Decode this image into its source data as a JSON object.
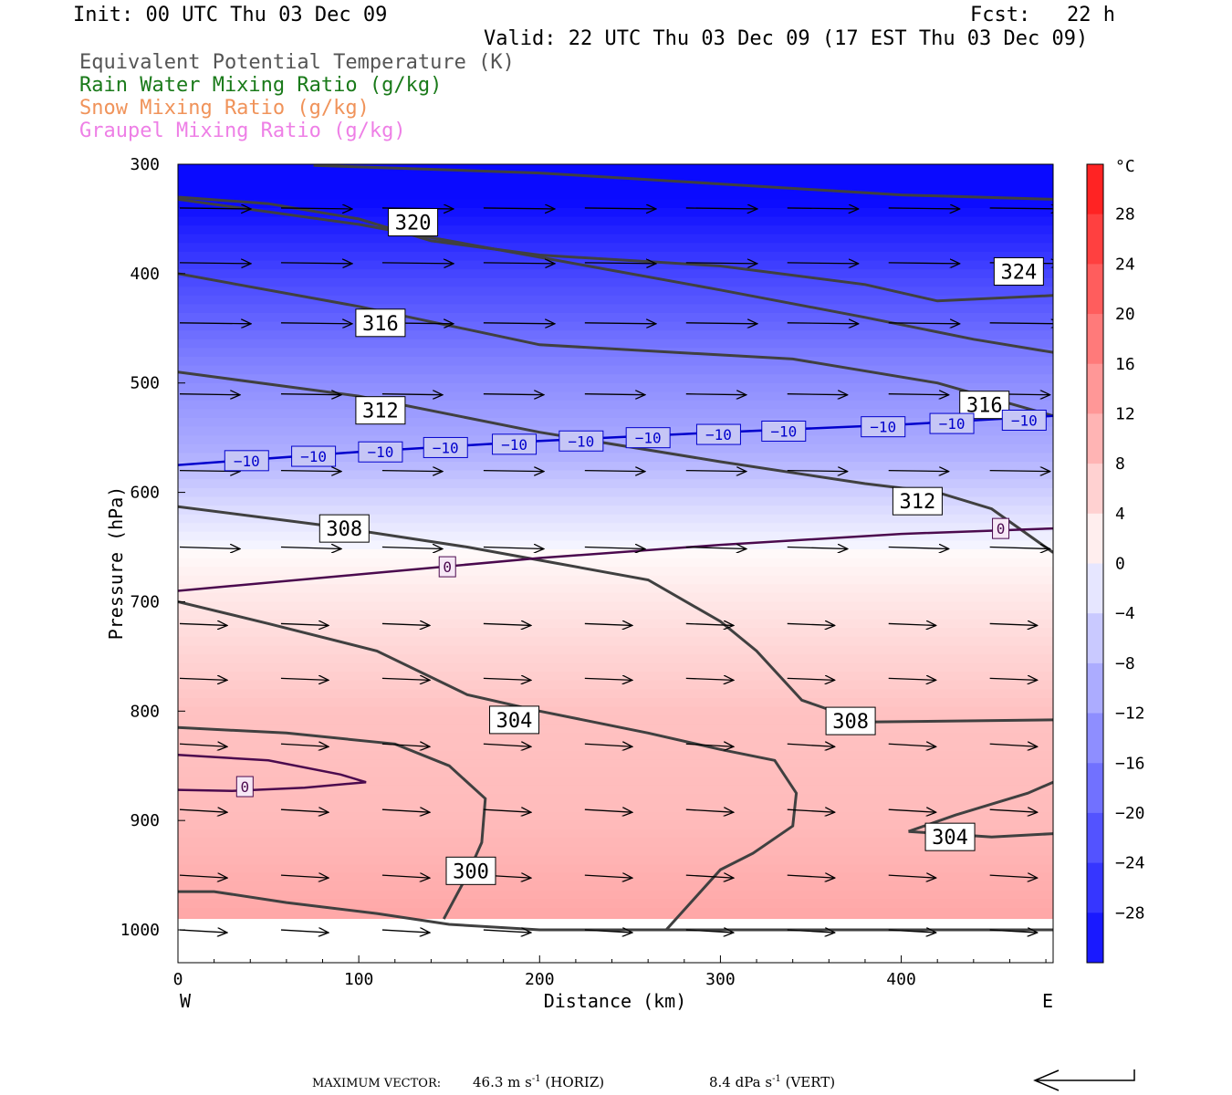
{
  "header": {
    "init": "Init: 00 UTC Thu 03 Dec 09",
    "fcst": "Fcst:   22 h",
    "valid": "Valid: 22 UTC Thu 03 Dec 09 (17 EST Thu 03 Dec 09)"
  },
  "legend": [
    {
      "label": "Equivalent Potential Temperature (K)",
      "color": "#555555"
    },
    {
      "label": "Rain Water Mixing Ratio (g/kg)",
      "color": "#1a7a1a"
    },
    {
      "label": "Snow Mixing Ratio (g/kg)",
      "color": "#f0935a"
    },
    {
      "label": "Graupel Mixing Ratio (g/kg)",
      "color": "#ee7fe6"
    }
  ],
  "chart_data": {
    "type": "cross-section",
    "xlabel": "Distance (km)",
    "ylabel": "Pressure (hPa)",
    "xlim": [
      0,
      484
    ],
    "ylim": [
      1030,
      300
    ],
    "xticks": [
      0,
      100,
      200,
      300,
      400
    ],
    "yticks": [
      300,
      400,
      500,
      600,
      700,
      800,
      900,
      1000
    ],
    "x_end_labels": {
      "left": "W",
      "right": "E"
    },
    "colorbar": {
      "unit": "°C",
      "range": [
        -32,
        32
      ],
      "step": 4,
      "tick_labels": [
        "28",
        "24",
        "20",
        "16",
        "12",
        "8",
        "4",
        "0",
        "−4",
        "−8",
        "−12",
        "−16",
        "−20",
        "−24",
        "−28"
      ]
    },
    "theta_e_contours": [
      {
        "label": "300",
        "points": [
          [
            147,
            990
          ],
          [
            160,
            950
          ],
          [
            168,
            920
          ],
          [
            170,
            880
          ],
          [
            150,
            850
          ],
          [
            120,
            830
          ],
          [
            60,
            820
          ],
          [
            0,
            815
          ]
        ]
      },
      {
        "label": "300",
        "points": [
          [
            0,
            965
          ],
          [
            20,
            965
          ],
          [
            60,
            975
          ],
          [
            110,
            985
          ],
          [
            150,
            995
          ],
          [
            200,
            1000
          ],
          [
            484,
            1000
          ]
        ]
      },
      {
        "label": "304",
        "points": [
          [
            0,
            700
          ],
          [
            50,
            720
          ],
          [
            110,
            745
          ],
          [
            160,
            785
          ],
          [
            200,
            800
          ],
          [
            260,
            820
          ],
          [
            300,
            835
          ],
          [
            330,
            845
          ],
          [
            342,
            875
          ],
          [
            340,
            905
          ],
          [
            318,
            930
          ],
          [
            300,
            945
          ],
          [
            270,
            1000
          ]
        ]
      },
      {
        "label": "304",
        "points": [
          [
            404,
            910
          ],
          [
            430,
            895
          ],
          [
            450,
            885
          ],
          [
            470,
            875
          ],
          [
            484,
            865
          ]
        ]
      },
      {
        "label": "304",
        "points": [
          [
            404,
            910
          ],
          [
            450,
            915
          ],
          [
            484,
            912
          ]
        ]
      },
      {
        "label": "308",
        "points": [
          [
            0,
            613
          ],
          [
            80,
            630
          ],
          [
            160,
            650
          ],
          [
            210,
            665
          ],
          [
            260,
            680
          ],
          [
            300,
            718
          ],
          [
            320,
            745
          ],
          [
            345,
            790
          ],
          [
            380,
            810
          ],
          [
            484,
            808
          ]
        ]
      },
      {
        "label": "312",
        "points": [
          [
            0,
            490
          ],
          [
            100,
            512
          ],
          [
            200,
            545
          ],
          [
            300,
            572
          ],
          [
            380,
            592
          ],
          [
            420,
            600
          ],
          [
            450,
            615
          ],
          [
            484,
            655
          ]
        ]
      },
      {
        "label": "316",
        "points": [
          [
            0,
            400
          ],
          [
            100,
            430
          ],
          [
            200,
            465
          ],
          [
            340,
            478
          ],
          [
            420,
            500
          ],
          [
            484,
            530
          ]
        ]
      },
      {
        "label": "320",
        "points": [
          [
            0,
            332
          ],
          [
            100,
            355
          ],
          [
            200,
            385
          ],
          [
            300,
            415
          ],
          [
            380,
            440
          ],
          [
            440,
            460
          ],
          [
            484,
            472
          ]
        ]
      },
      {
        "label": "324",
        "points": [
          [
            0,
            330
          ],
          [
            50,
            336
          ],
          [
            100,
            350
          ],
          [
            140,
            370
          ],
          [
            200,
            383
          ],
          [
            300,
            393
          ],
          [
            380,
            410
          ],
          [
            420,
            425
          ],
          [
            484,
            420
          ]
        ]
      },
      {
        "label": "",
        "points": [
          [
            75,
            301
          ],
          [
            200,
            308
          ],
          [
            300,
            318
          ],
          [
            400,
            328
          ],
          [
            484,
            332
          ]
        ]
      }
    ],
    "theta_e_labels": [
      {
        "text": "320",
        "x": 130,
        "y": 353
      },
      {
        "text": "324",
        "x": 465,
        "y": 398
      },
      {
        "text": "316",
        "x": 112,
        "y": 445
      },
      {
        "text": "312",
        "x": 112,
        "y": 525
      },
      {
        "text": "316",
        "x": 446,
        "y": 520
      },
      {
        "text": "312",
        "x": 409,
        "y": 608
      },
      {
        "text": "308",
        "x": 92,
        "y": 633
      },
      {
        "text": "304",
        "x": 186,
        "y": 808
      },
      {
        "text": "308",
        "x": 372,
        "y": 809
      },
      {
        "text": "304",
        "x": 427,
        "y": 915
      },
      {
        "text": "300",
        "x": 162,
        "y": 946
      }
    ],
    "temperature_contours": [
      {
        "label": "−10",
        "color": "#0000cc",
        "points": [
          [
            0,
            575
          ],
          [
            100,
            563
          ],
          [
            200,
            553
          ],
          [
            300,
            545
          ],
          [
            400,
            538
          ],
          [
            484,
            530
          ]
        ]
      },
      {
        "label": "0",
        "color": "#4b0a4e",
        "points": [
          [
            0,
            690
          ],
          [
            100,
            675
          ],
          [
            200,
            660
          ],
          [
            300,
            648
          ],
          [
            400,
            638
          ],
          [
            484,
            633
          ]
        ]
      },
      {
        "label": "0",
        "color": "#4b0a4e",
        "points": [
          [
            0,
            840
          ],
          [
            50,
            845
          ],
          [
            90,
            858
          ],
          [
            104,
            865
          ],
          [
            70,
            870
          ],
          [
            30,
            873
          ],
          [
            0,
            872
          ]
        ]
      }
    ],
    "temperature_labels": [
      {
        "text": "−10",
        "x": 38,
        "y": 571
      },
      {
        "text": "−10",
        "x": 75,
        "y": 567
      },
      {
        "text": "−10",
        "x": 112,
        "y": 563
      },
      {
        "text": "−10",
        "x": 148,
        "y": 559
      },
      {
        "text": "−10",
        "x": 186,
        "y": 556
      },
      {
        "text": "−10",
        "x": 223,
        "y": 553
      },
      {
        "text": "−10",
        "x": 260,
        "y": 550
      },
      {
        "text": "−10",
        "x": 299,
        "y": 547
      },
      {
        "text": "−10",
        "x": 335,
        "y": 544
      },
      {
        "text": "−10",
        "x": 390,
        "y": 540
      },
      {
        "text": "−10",
        "x": 428,
        "y": 537
      },
      {
        "text": "−10",
        "x": 468,
        "y": 534
      },
      {
        "text": "0",
        "x": 149,
        "y": 668
      },
      {
        "text": "0",
        "x": 455,
        "y": 633
      },
      {
        "text": "0",
        "x": 37,
        "y": 869
      }
    ],
    "vectors": {
      "x": [
        0,
        56,
        112,
        168,
        224,
        280,
        336,
        392,
        448
      ],
      "p": [
        340,
        390,
        445,
        510,
        580,
        650,
        720,
        770,
        830,
        890,
        950,
        1000
      ],
      "u_scale": 1.0
    }
  },
  "footer": {
    "max_vector": "MAXIMUM VECTOR:",
    "horiz_value": "46.3 m s",
    "horiz_exp": "-1",
    "horiz_tag": "(HORIZ)",
    "vert_value": "8.4 dPa s",
    "vert_exp": "-1",
    "vert_tag": "(VERT)"
  }
}
